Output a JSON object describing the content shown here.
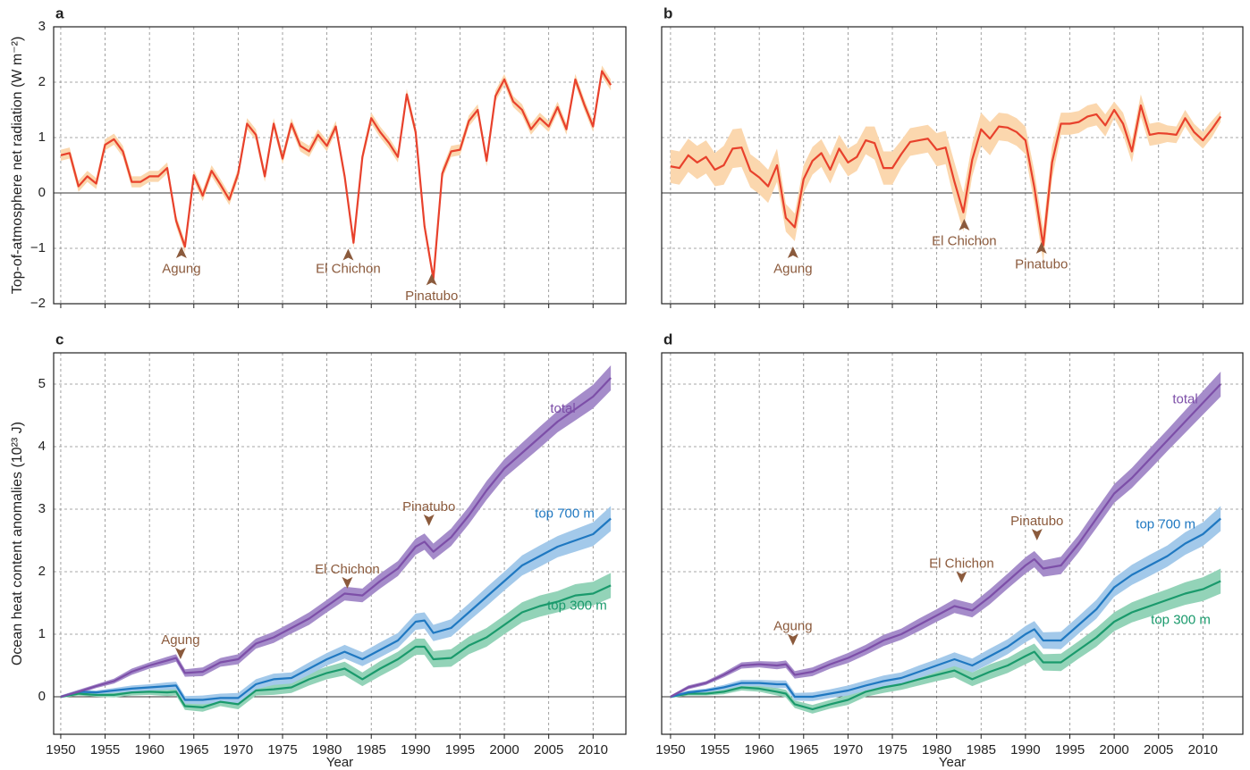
{
  "chart_data": [
    {
      "type": "line",
      "label": "a",
      "ylabel": "Top-of-atmosphere net radiation (W m⁻²)",
      "x": [
        1950,
        1951,
        1952,
        1953,
        1954,
        1955,
        1956,
        1957,
        1958,
        1959,
        1960,
        1961,
        1962,
        1963,
        1964,
        1965,
        1966,
        1967,
        1968,
        1969,
        1970,
        1971,
        1972,
        1973,
        1974,
        1975,
        1976,
        1977,
        1978,
        1979,
        1980,
        1981,
        1982,
        1983,
        1984,
        1985,
        1986,
        1987,
        1988,
        1989,
        1990,
        1991,
        1992,
        1993,
        1994,
        1995,
        1996,
        1997,
        1998,
        1999,
        2000,
        2001,
        2002,
        2003,
        2004,
        2005,
        2006,
        2007,
        2008,
        2009,
        2010,
        2011,
        2012
      ],
      "values": [
        0.68,
        0.72,
        0.12,
        0.3,
        0.17,
        0.87,
        0.97,
        0.75,
        0.2,
        0.2,
        0.3,
        0.3,
        0.45,
        -0.5,
        -0.97,
        0.32,
        -0.05,
        0.4,
        0.15,
        -0.12,
        0.35,
        1.25,
        1.05,
        0.3,
        1.25,
        0.62,
        1.25,
        0.85,
        0.75,
        1.05,
        0.85,
        1.2,
        0.3,
        -0.9,
        0.65,
        1.35,
        1.1,
        0.9,
        0.65,
        1.78,
        1.1,
        -0.6,
        -1.55,
        0.35,
        0.75,
        0.78,
        1.3,
        1.5,
        0.58,
        1.75,
        2.05,
        1.65,
        1.5,
        1.15,
        1.35,
        1.2,
        1.55,
        1.15,
        2.05,
        1.6,
        1.2,
        2.2,
        1.95
      ],
      "err": 0.1,
      "color": "#e8412c",
      "band_color": "#fbd7ae",
      "xlim": [
        1949.2,
        2013.7
      ],
      "ylim": [
        -2,
        3
      ],
      "xticks": [
        1950,
        1955,
        1960,
        1965,
        1970,
        1975,
        1980,
        1985,
        1990,
        1995,
        2000,
        2005,
        2010
      ],
      "yticks": [
        {
          "value": -2,
          "label": "−2"
        },
        {
          "value": -1,
          "label": "−1"
        },
        0,
        1,
        2,
        3
      ],
      "grid": true,
      "xtick_labels": false,
      "ytick_labels": true,
      "annotations": [
        "Agung",
        "El Chichon",
        "Pinatubo"
      ]
    },
    {
      "type": "line",
      "label": "b",
      "x": [
        1950,
        1951,
        1952,
        1953,
        1954,
        1955,
        1956,
        1957,
        1958,
        1959,
        1960,
        1961,
        1962,
        1963,
        1964,
        1965,
        1966,
        1967,
        1968,
        1969,
        1970,
        1971,
        1972,
        1973,
        1974,
        1975,
        1976,
        1977,
        1978,
        1979,
        1980,
        1981,
        1982,
        1983,
        1984,
        1985,
        1986,
        1987,
        1988,
        1989,
        1990,
        1991,
        1992,
        1993,
        1994,
        1995,
        1996,
        1997,
        1998,
        1999,
        2000,
        2001,
        2002,
        2003,
        2004,
        2005,
        2006,
        2007,
        2008,
        2009,
        2010,
        2011,
        2012
      ],
      "values": [
        0.48,
        0.45,
        0.68,
        0.55,
        0.65,
        0.42,
        0.5,
        0.8,
        0.82,
        0.4,
        0.28,
        0.12,
        0.5,
        -0.45,
        -0.62,
        0.25,
        0.58,
        0.72,
        0.42,
        0.8,
        0.55,
        0.65,
        0.95,
        0.9,
        0.45,
        0.45,
        0.7,
        0.92,
        0.95,
        0.98,
        0.78,
        0.82,
        0.2,
        -0.35,
        0.6,
        1.15,
        0.98,
        1.2,
        1.18,
        1.1,
        0.95,
        0.1,
        -0.95,
        0.55,
        1.25,
        1.25,
        1.28,
        1.38,
        1.42,
        1.22,
        1.5,
        1.25,
        0.75,
        1.58,
        1.05,
        1.08,
        1.07,
        1.05,
        1.35,
        1.1,
        0.95,
        1.15,
        1.38
      ],
      "err": [
        0.3,
        0.3,
        0.3,
        0.3,
        0.3,
        0.3,
        0.35,
        0.35,
        0.35,
        0.3,
        0.3,
        0.3,
        0.3,
        0.25,
        0.25,
        0.25,
        0.25,
        0.25,
        0.25,
        0.25,
        0.25,
        0.25,
        0.25,
        0.3,
        0.3,
        0.3,
        0.25,
        0.25,
        0.25,
        0.25,
        0.3,
        0.3,
        0.35,
        0.35,
        0.3,
        0.3,
        0.3,
        0.25,
        0.25,
        0.25,
        0.25,
        0.3,
        0.3,
        0.3,
        0.2,
        0.2,
        0.2,
        0.2,
        0.2,
        0.2,
        0.15,
        0.2,
        0.2,
        0.2,
        0.2,
        0.2,
        0.15,
        0.15,
        0.15,
        0.15,
        0.15,
        0.15,
        0.1
      ],
      "color": "#e8412c",
      "band_color": "#fbd7ae",
      "xlim": [
        1949,
        2014.5
      ],
      "ylim": [
        -2,
        3
      ],
      "xticks": [
        1950,
        1955,
        1960,
        1965,
        1970,
        1975,
        1980,
        1985,
        1990,
        1995,
        2000,
        2005,
        2010
      ],
      "yticks": [
        -2,
        -1,
        0,
        1,
        2,
        3
      ],
      "grid": true,
      "xtick_labels": false,
      "ytick_labels": false,
      "annotations": [
        "Agung",
        "El Chichon",
        "Pinatubo"
      ]
    },
    {
      "type": "line",
      "label": "c",
      "ylabel": "Ocean heat content anomalies (10²³ J)",
      "xlabel": "Year",
      "x": [
        1950,
        1952,
        1954,
        1956,
        1958,
        1960,
        1962,
        1963,
        1964,
        1966,
        1968,
        1970,
        1972,
        1974,
        1976,
        1978,
        1980,
        1982,
        1984,
        1986,
        1988,
        1990,
        1991,
        1992,
        1994,
        1996,
        1998,
        2000,
        2002,
        2004,
        2006,
        2008,
        2010,
        2012
      ],
      "series": [
        {
          "name": "top 300 m",
          "color": "#1a9a6c",
          "band_color": "#93d3b8",
          "values": [
            0,
            0.05,
            0.03,
            0.03,
            0.07,
            0.08,
            0.07,
            0.08,
            -0.15,
            -0.17,
            -0.08,
            -0.12,
            0.1,
            0.12,
            0.15,
            0.28,
            0.38,
            0.45,
            0.28,
            0.45,
            0.6,
            0.8,
            0.8,
            0.6,
            0.62,
            0.82,
            0.95,
            1.15,
            1.35,
            1.45,
            1.52,
            1.62,
            1.65,
            1.78
          ],
          "err": [
            0.02,
            0.03,
            0.03,
            0.04,
            0.05,
            0.05,
            0.06,
            0.06,
            0.06,
            0.07,
            0.07,
            0.08,
            0.08,
            0.09,
            0.09,
            0.1,
            0.1,
            0.11,
            0.11,
            0.12,
            0.12,
            0.13,
            0.13,
            0.13,
            0.14,
            0.14,
            0.15,
            0.15,
            0.16,
            0.17,
            0.17,
            0.18,
            0.19,
            0.2
          ]
        },
        {
          "name": "top 700 m",
          "color": "#1f78c1",
          "band_color": "#a3c9ea",
          "values": [
            0,
            0.08,
            0.07,
            0.1,
            0.13,
            0.15,
            0.17,
            0.18,
            -0.05,
            -0.05,
            -0.02,
            -0.02,
            0.2,
            0.28,
            0.3,
            0.45,
            0.6,
            0.72,
            0.6,
            0.75,
            0.9,
            1.2,
            1.22,
            1.02,
            1.1,
            1.35,
            1.6,
            1.85,
            2.1,
            2.25,
            2.4,
            2.5,
            2.6,
            2.85
          ],
          "err": [
            0.02,
            0.03,
            0.03,
            0.04,
            0.05,
            0.05,
            0.06,
            0.06,
            0.06,
            0.07,
            0.07,
            0.08,
            0.08,
            0.09,
            0.09,
            0.1,
            0.1,
            0.11,
            0.11,
            0.12,
            0.12,
            0.13,
            0.13,
            0.13,
            0.14,
            0.14,
            0.15,
            0.15,
            0.16,
            0.17,
            0.17,
            0.18,
            0.19,
            0.2
          ]
        },
        {
          "name": "total",
          "color": "#7d4fa8",
          "band_color": "#a58cca",
          "values": [
            0,
            0.08,
            0.17,
            0.25,
            0.4,
            0.5,
            0.58,
            0.62,
            0.38,
            0.4,
            0.55,
            0.6,
            0.85,
            0.95,
            1.1,
            1.25,
            1.45,
            1.65,
            1.62,
            1.85,
            2.05,
            2.4,
            2.48,
            2.32,
            2.55,
            2.9,
            3.3,
            3.65,
            3.9,
            4.15,
            4.4,
            4.6,
            4.8,
            5.1
          ],
          "err": [
            0.02,
            0.03,
            0.03,
            0.04,
            0.05,
            0.05,
            0.06,
            0.06,
            0.06,
            0.07,
            0.07,
            0.08,
            0.08,
            0.09,
            0.09,
            0.1,
            0.1,
            0.11,
            0.11,
            0.12,
            0.12,
            0.13,
            0.13,
            0.13,
            0.14,
            0.14,
            0.15,
            0.15,
            0.16,
            0.17,
            0.17,
            0.18,
            0.19,
            0.2
          ]
        }
      ],
      "xlim": [
        1949.2,
        2013.7
      ],
      "ylim": [
        -0.6,
        5.5
      ],
      "xticks": [
        1950,
        1955,
        1960,
        1965,
        1970,
        1975,
        1980,
        1985,
        1990,
        1995,
        2000,
        2005,
        2010
      ],
      "yticks": [
        0,
        1,
        2,
        3,
        4,
        5
      ],
      "grid": true,
      "xtick_labels": true,
      "ytick_labels": true,
      "annotations": [
        "Agung",
        "El Chichon",
        "Pinatubo"
      ]
    },
    {
      "type": "line",
      "label": "d",
      "xlabel": "Year",
      "x": [
        1950,
        1952,
        1954,
        1956,
        1958,
        1960,
        1962,
        1963,
        1964,
        1966,
        1968,
        1970,
        1972,
        1974,
        1976,
        1978,
        1980,
        1982,
        1984,
        1986,
        1988,
        1990,
        1991,
        1992,
        1994,
        1996,
        1998,
        2000,
        2002,
        2004,
        2006,
        2008,
        2010,
        2012
      ],
      "series": [
        {
          "name": "top 300 m",
          "color": "#1a9a6c",
          "band_color": "#93d3b8",
          "values": [
            0,
            0.05,
            0.05,
            0.08,
            0.15,
            0.13,
            0.08,
            0.05,
            -0.12,
            -0.2,
            -0.12,
            -0.05,
            0.08,
            0.15,
            0.2,
            0.28,
            0.35,
            0.42,
            0.28,
            0.4,
            0.5,
            0.65,
            0.72,
            0.55,
            0.55,
            0.75,
            0.95,
            1.2,
            1.35,
            1.45,
            1.55,
            1.65,
            1.72,
            1.85
          ],
          "err": [
            0.02,
            0.03,
            0.03,
            0.04,
            0.05,
            0.05,
            0.06,
            0.06,
            0.06,
            0.07,
            0.07,
            0.08,
            0.08,
            0.09,
            0.09,
            0.1,
            0.1,
            0.11,
            0.11,
            0.12,
            0.12,
            0.13,
            0.13,
            0.13,
            0.14,
            0.14,
            0.15,
            0.15,
            0.16,
            0.17,
            0.17,
            0.18,
            0.19,
            0.2
          ]
        },
        {
          "name": "top 700 m",
          "color": "#1f78c1",
          "band_color": "#a3c9ea",
          "values": [
            0,
            0.07,
            0.1,
            0.15,
            0.22,
            0.22,
            0.2,
            0.2,
            0,
            0,
            0.05,
            0.1,
            0.18,
            0.25,
            0.3,
            0.4,
            0.5,
            0.6,
            0.5,
            0.65,
            0.8,
            1,
            1.08,
            0.9,
            0.9,
            1.15,
            1.4,
            1.75,
            1.95,
            2.1,
            2.25,
            2.45,
            2.6,
            2.85
          ],
          "err": [
            0.02,
            0.03,
            0.03,
            0.04,
            0.05,
            0.05,
            0.06,
            0.06,
            0.06,
            0.07,
            0.07,
            0.08,
            0.08,
            0.09,
            0.09,
            0.1,
            0.1,
            0.11,
            0.11,
            0.12,
            0.12,
            0.13,
            0.13,
            0.13,
            0.14,
            0.14,
            0.15,
            0.15,
            0.16,
            0.17,
            0.17,
            0.18,
            0.19,
            0.2
          ]
        },
        {
          "name": "total",
          "color": "#7d4fa8",
          "band_color": "#a58cca",
          "values": [
            0,
            0.15,
            0.22,
            0.35,
            0.5,
            0.52,
            0.5,
            0.52,
            0.35,
            0.4,
            0.52,
            0.62,
            0.75,
            0.9,
            1,
            1.15,
            1.3,
            1.45,
            1.38,
            1.6,
            1.85,
            2.1,
            2.2,
            2.05,
            2.1,
            2.45,
            2.85,
            3.25,
            3.5,
            3.8,
            4.1,
            4.4,
            4.7,
            5
          ],
          "err": [
            0.02,
            0.03,
            0.03,
            0.04,
            0.05,
            0.05,
            0.06,
            0.06,
            0.06,
            0.07,
            0.07,
            0.08,
            0.08,
            0.09,
            0.09,
            0.1,
            0.1,
            0.11,
            0.11,
            0.12,
            0.12,
            0.13,
            0.13,
            0.13,
            0.14,
            0.14,
            0.15,
            0.15,
            0.16,
            0.17,
            0.17,
            0.18,
            0.19,
            0.2
          ]
        }
      ],
      "xlim": [
        1949,
        2014.5
      ],
      "ylim": [
        -0.6,
        5.5
      ],
      "xticks": [
        1950,
        1955,
        1960,
        1965,
        1970,
        1975,
        1980,
        1985,
        1990,
        1995,
        2000,
        2005,
        2010
      ],
      "yticks": [
        0,
        1,
        2,
        3,
        4,
        5
      ],
      "grid": true,
      "xtick_labels": true,
      "ytick_labels": false,
      "annotations": [
        "Agung",
        "El Chichon",
        "Pinatubo"
      ]
    }
  ]
}
